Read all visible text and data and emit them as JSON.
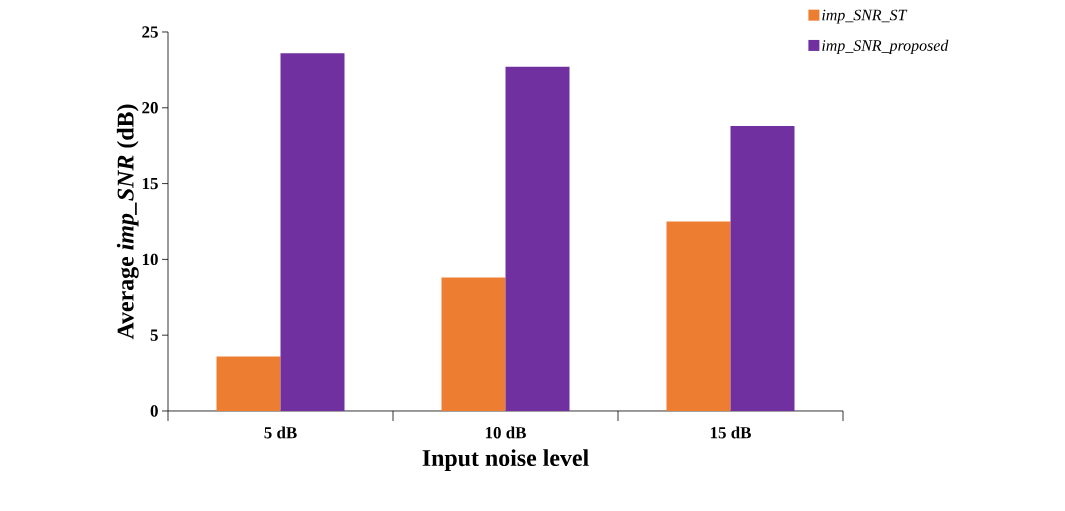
{
  "chart_data": {
    "type": "bar",
    "xlabel": "Input noise level",
    "ylabel": "Average *imp_SNR* (dB)",
    "categories": [
      "5 dB",
      "10 dB",
      "15 dB"
    ],
    "series": [
      {
        "name": "imp_SNR_ST",
        "color": "#ed7d31",
        "values": [
          3.6,
          8.8,
          12.5
        ]
      },
      {
        "name": "imp_SNR_proposed",
        "color": "#7030a0",
        "values": [
          23.6,
          22.7,
          18.8
        ]
      }
    ],
    "ylim": [
      0,
      25
    ],
    "yticks": [
      0,
      5,
      10,
      15,
      20,
      25
    ],
    "grid": false,
    "legend": "top right"
  }
}
